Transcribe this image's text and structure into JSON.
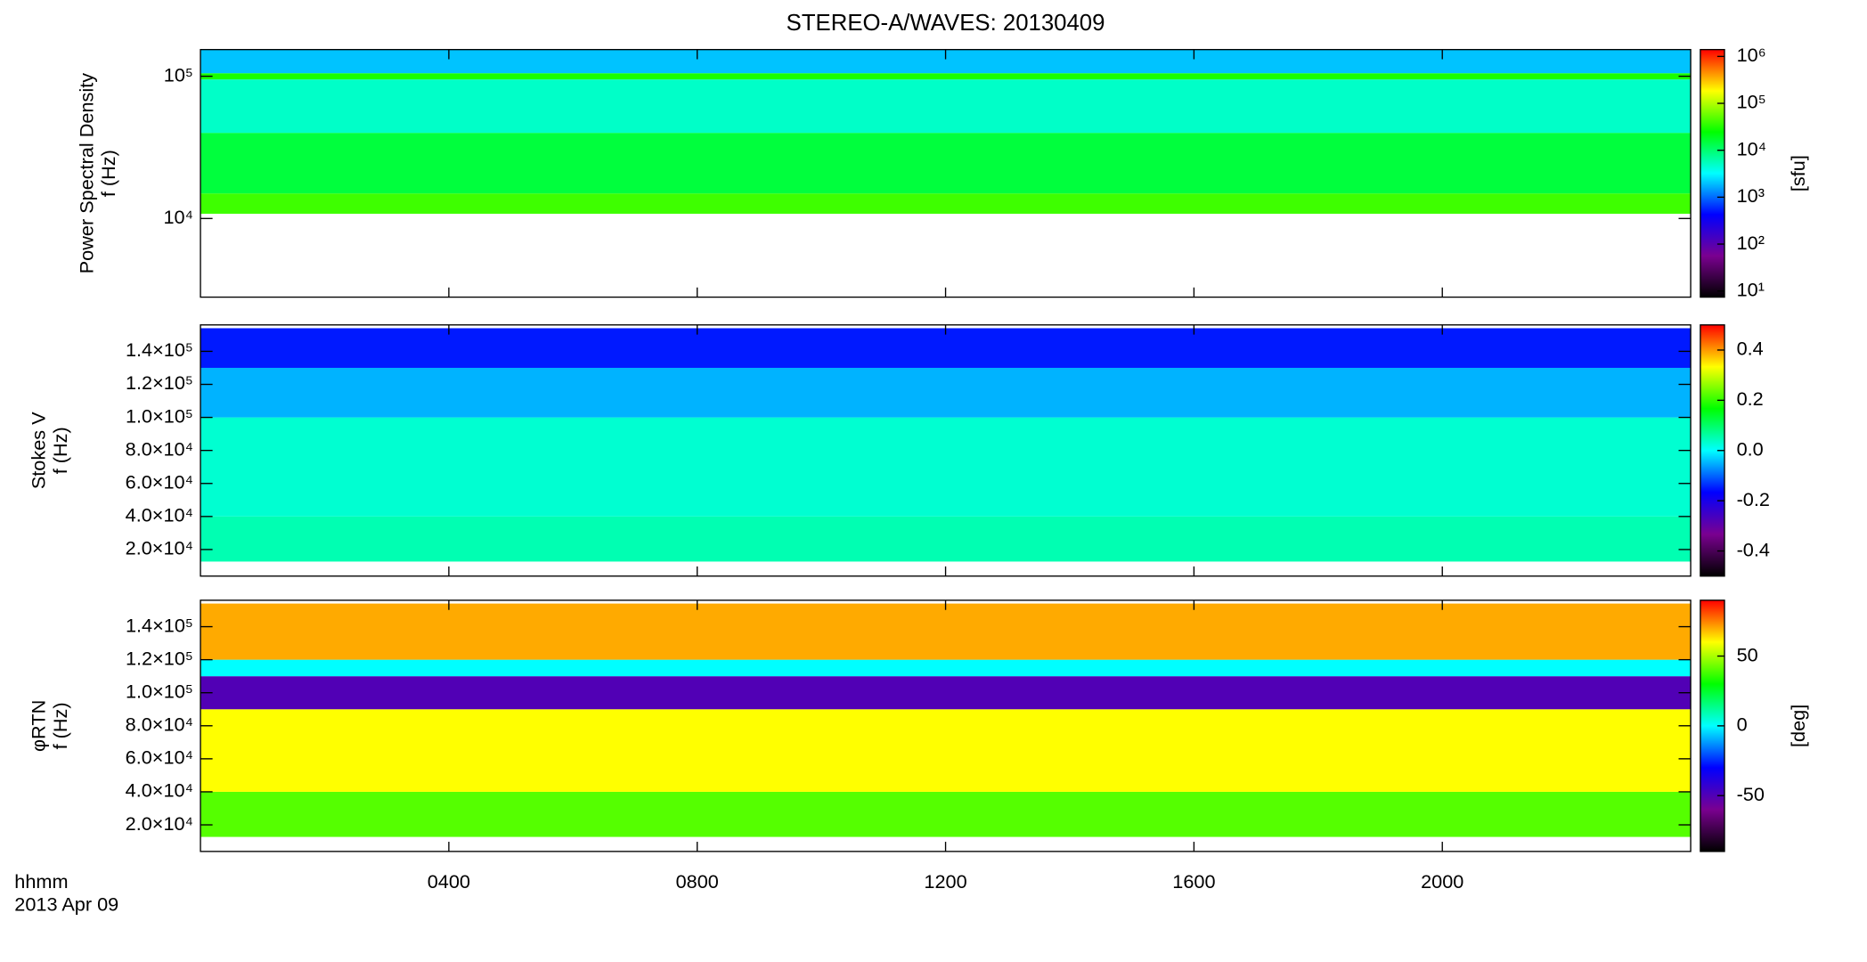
{
  "chart_data": [
    {
      "type": "heatmap",
      "title": "STEREO-A/WAVES: 20130409",
      "ylabel": [
        "Power Spectral Density",
        "f (Hz)"
      ],
      "xlim": [
        0,
        24
      ],
      "ylim": [
        2800,
        154000
      ],
      "yscale": "log",
      "yticks": [
        {
          "value": 10000,
          "label": "10⁴"
        },
        {
          "value": 100000,
          "label": "10⁵"
        }
      ],
      "f_edges": [
        10800,
        15000,
        40000,
        95000,
        105000,
        154000
      ],
      "values": [
        40000,
        15000,
        5000,
        30000,
        2000
      ],
      "colormap": [
        "#000000",
        "#7a0090",
        "#0000ff",
        "#00ffff",
        "#00ff00",
        "#ffff00",
        "#ff0000"
      ],
      "colorbar": {
        "label": "[sfu]",
        "scale": "log",
        "lim": [
          7.4,
          1400000
        ],
        "ticks": [
          {
            "value": 10,
            "label": "10¹"
          },
          {
            "value": 100,
            "label": "10²"
          },
          {
            "value": 1000,
            "label": "10³"
          },
          {
            "value": 10000,
            "label": "10⁴"
          },
          {
            "value": 100000,
            "label": "10⁵"
          },
          {
            "value": 1000000,
            "label": "10⁶"
          }
        ]
      }
    },
    {
      "type": "heatmap",
      "ylabel": [
        "Stokes V",
        "f (Hz)"
      ],
      "xlim": [
        0,
        24
      ],
      "ylim": [
        3900,
        156000
      ],
      "yscale": "linear",
      "yticks": [
        {
          "value": 20000,
          "label": "2.0×10⁴"
        },
        {
          "value": 40000,
          "label": "4.0×10⁴"
        },
        {
          "value": 60000,
          "label": "6.0×10⁴"
        },
        {
          "value": 80000,
          "label": "8.0×10⁴"
        },
        {
          "value": 100000,
          "label": "1.0×10⁵"
        },
        {
          "value": 120000,
          "label": "1.2×10⁵"
        },
        {
          "value": 140000,
          "label": "1.4×10⁵"
        }
      ],
      "f_edges": [
        12700,
        40000,
        100000,
        130000,
        154000
      ],
      "values": [
        0.05,
        0.03,
        -0.05,
        -0.15
      ],
      "colormap": [
        "#000000",
        "#7a0090",
        "#0000ff",
        "#00ffff",
        "#00ff00",
        "#ffff00",
        "#ff0000"
      ],
      "colorbar": {
        "scale": "linear",
        "lim": [
          -0.5,
          0.5
        ],
        "ticks": [
          {
            "value": -0.4,
            "label": "-0.4"
          },
          {
            "value": -0.2,
            "label": "-0.2"
          },
          {
            "value": 0,
            "label": "0.0"
          },
          0.2,
          0.4
        ]
      }
    },
    {
      "type": "heatmap",
      "ylabel": [
        "φRTN",
        "f (Hz)"
      ],
      "xlim": [
        0,
        24
      ],
      "ylim": [
        3900,
        156000
      ],
      "yscale": "linear",
      "xlabel": [
        "hhmm",
        "2013 Apr 09"
      ],
      "xticks": [
        {
          "value": 4,
          "label": "0400"
        },
        {
          "value": 8,
          "label": "0800"
        },
        {
          "value": 12,
          "label": "1200"
        },
        {
          "value": 16,
          "label": "1600"
        },
        {
          "value": 20,
          "label": "2000"
        }
      ],
      "yticks": [
        {
          "value": 20000,
          "label": "2.0×10⁴"
        },
        {
          "value": 40000,
          "label": "4.0×10⁴"
        },
        {
          "value": 60000,
          "label": "6.0×10⁴"
        },
        {
          "value": 80000,
          "label": "8.0×10⁴"
        },
        {
          "value": 100000,
          "label": "1.0×10⁵"
        },
        {
          "value": 120000,
          "label": "1.2×10⁵"
        },
        {
          "value": 140000,
          "label": "1.4×10⁵"
        }
      ],
      "f_edges": [
        12700,
        40000,
        90000,
        110000,
        120000,
        154000
      ],
      "values": [
        40,
        60,
        -50,
        0,
        70
      ],
      "colormap": [
        "#000000",
        "#7a0090",
        "#0000ff",
        "#00ffff",
        "#00ff00",
        "#ffff00",
        "#ff0000"
      ],
      "colorbar": {
        "label": "[deg]",
        "scale": "linear",
        "lim": [
          -90,
          90
        ],
        "ticks": [
          -50,
          0,
          50
        ]
      }
    }
  ]
}
